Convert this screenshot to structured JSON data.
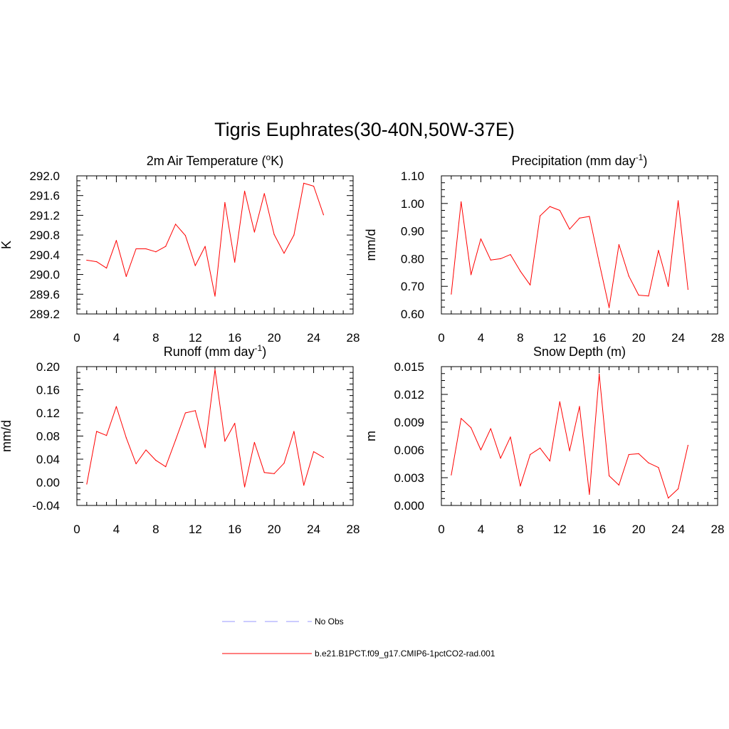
{
  "figure": {
    "title": "Tigris Euphrates(30-40N,50W-37E)"
  },
  "legend": {
    "items": [
      {
        "label": "No Obs",
        "color": "#9999ff",
        "dash": true
      },
      {
        "label": "b.e21.B1PCT.f09_g17.CMIP6-1pctCO2-rad.001",
        "color": "#ff0000",
        "dash": false
      }
    ]
  },
  "colors": {
    "series": "#ff0000",
    "obs": "#9999ff"
  },
  "chart_data": [
    {
      "type": "line",
      "title": "2m Air Temperature (",
      "title_sup": "o",
      "title_after": "K)",
      "ylabel": "K",
      "xlim": [
        0,
        28
      ],
      "ylim": [
        289.2,
        292.0
      ],
      "xticks": [
        "0",
        "4",
        "8",
        "12",
        "16",
        "20",
        "24",
        "28"
      ],
      "yticks": [
        "289.2",
        "289.6",
        "290.0",
        "290.4",
        "290.8",
        "291.2",
        "291.6",
        "292.0"
      ],
      "series": [
        {
          "x": [
            1,
            2,
            3,
            4,
            5,
            6,
            7,
            8,
            9,
            10,
            11,
            12,
            13,
            14,
            15,
            16,
            17,
            18,
            19,
            20,
            21,
            22,
            23,
            24,
            25
          ],
          "values": [
            290.29,
            290.26,
            290.13,
            290.69,
            289.96,
            290.52,
            290.52,
            290.46,
            290.57,
            291.02,
            290.79,
            290.18,
            290.57,
            289.56,
            291.46,
            290.25,
            291.69,
            290.86,
            291.64,
            290.81,
            290.43,
            290.8,
            291.85,
            291.79,
            291.21
          ]
        }
      ]
    },
    {
      "type": "line",
      "title": "Precipitation (mm day",
      "title_sup": "-1",
      "title_after": ")",
      "ylabel": "mm/d",
      "xlim": [
        0,
        28
      ],
      "ylim": [
        0.6,
        1.1
      ],
      "xticks": [
        "0",
        "4",
        "8",
        "12",
        "16",
        "20",
        "24",
        "28"
      ],
      "yticks": [
        "0.60",
        "0.70",
        "0.80",
        "0.90",
        "1.00",
        "1.10"
      ],
      "series": [
        {
          "x": [
            1,
            2,
            3,
            4,
            5,
            6,
            7,
            8,
            9,
            10,
            11,
            12,
            13,
            14,
            15,
            16,
            17,
            18,
            19,
            20,
            21,
            22,
            23,
            24,
            25
          ],
          "values": [
            0.672,
            1.006,
            0.742,
            0.872,
            0.795,
            0.8,
            0.815,
            0.755,
            0.705,
            0.955,
            0.989,
            0.975,
            0.907,
            0.947,
            0.953,
            0.785,
            0.623,
            0.851,
            0.737,
            0.668,
            0.665,
            0.83,
            0.7,
            1.01,
            0.689
          ]
        }
      ]
    },
    {
      "type": "line",
      "title": "Runoff (mm day",
      "title_sup": "-1",
      "title_after": ")",
      "ylabel": "mm/d",
      "xlim": [
        0,
        28
      ],
      "ylim": [
        -0.04,
        0.2
      ],
      "xticks": [
        "0",
        "4",
        "8",
        "12",
        "16",
        "20",
        "24",
        "28"
      ],
      "yticks": [
        "-0.04",
        "0.00",
        "0.04",
        "0.08",
        "0.12",
        "0.16",
        "0.20"
      ],
      "series": [
        {
          "x": [
            1,
            2,
            3,
            4,
            5,
            6,
            7,
            8,
            9,
            10,
            11,
            12,
            13,
            14,
            15,
            16,
            17,
            18,
            19,
            20,
            21,
            22,
            23,
            24,
            25
          ],
          "values": [
            -0.003,
            0.088,
            0.081,
            0.131,
            0.077,
            0.032,
            0.056,
            0.038,
            0.027,
            0.073,
            0.12,
            0.124,
            0.06,
            0.195,
            0.071,
            0.102,
            -0.008,
            0.069,
            0.017,
            0.015,
            0.033,
            0.088,
            -0.005,
            0.053,
            0.043
          ]
        }
      ]
    },
    {
      "type": "line",
      "title": "Snow Depth (m)",
      "title_sup": "",
      "title_after": "",
      "ylabel": "m",
      "xlim": [
        0,
        28
      ],
      "ylim": [
        0.0,
        0.015
      ],
      "xticks": [
        "0",
        "4",
        "8",
        "12",
        "16",
        "20",
        "24",
        "28"
      ],
      "yticks": [
        "0.000",
        "0.003",
        "0.006",
        "0.009",
        "0.012",
        "0.015"
      ],
      "series": [
        {
          "x": [
            1,
            2,
            3,
            4,
            5,
            6,
            7,
            8,
            9,
            10,
            11,
            12,
            13,
            14,
            15,
            16,
            17,
            18,
            19,
            20,
            21,
            22,
            23,
            24,
            25
          ],
          "values": [
            0.0033,
            0.0094,
            0.0084,
            0.006,
            0.0083,
            0.0051,
            0.0074,
            0.0021,
            0.0055,
            0.0062,
            0.0048,
            0.0112,
            0.0059,
            0.0107,
            0.0012,
            0.0142,
            0.0032,
            0.0022,
            0.0055,
            0.0056,
            0.0046,
            0.0041,
            0.0008,
            0.0018,
            0.0065
          ]
        }
      ]
    }
  ]
}
